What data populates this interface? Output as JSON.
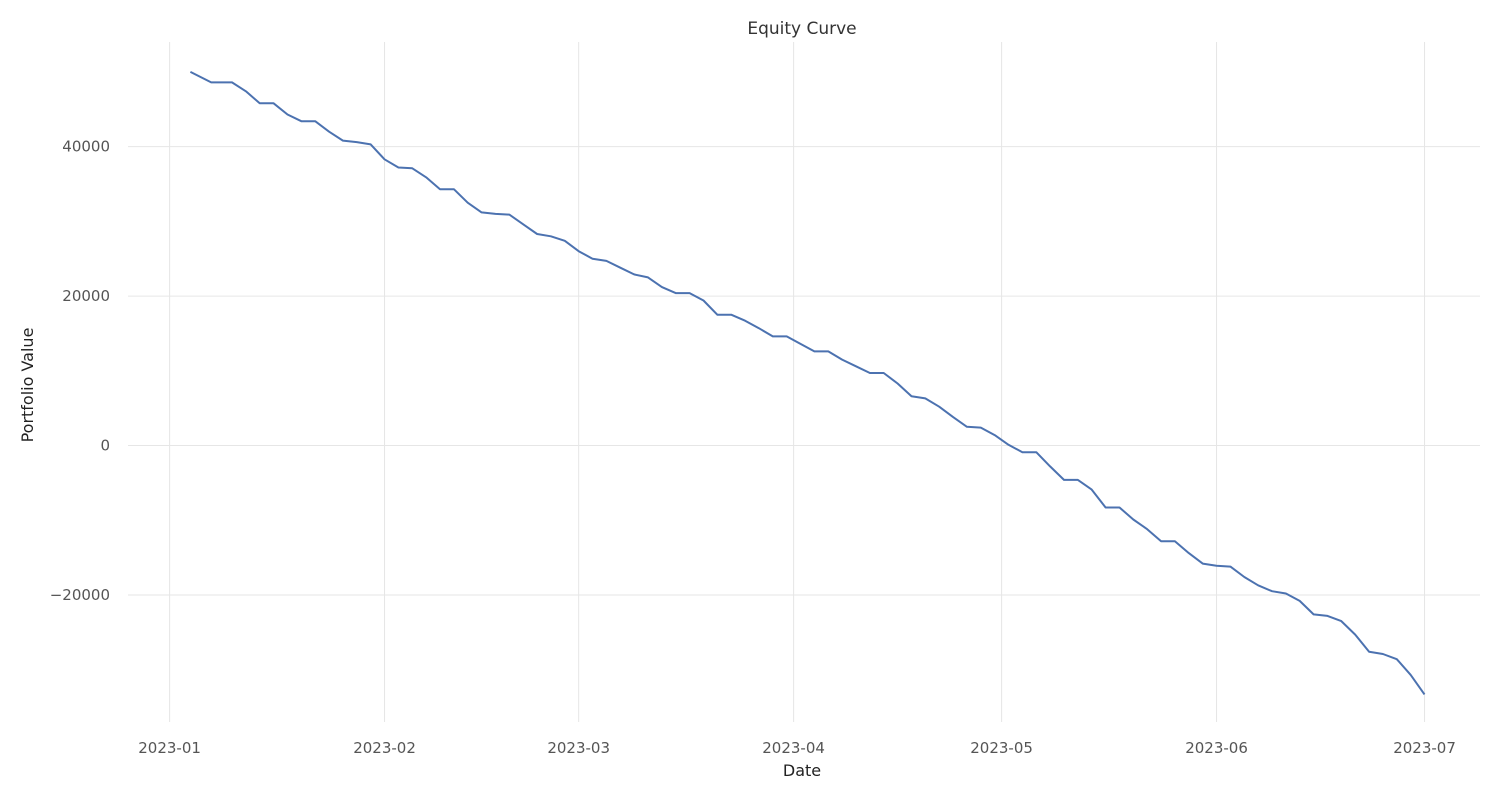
{
  "chart_data": {
    "type": "line",
    "title": "Equity Curve",
    "xlabel": "Date",
    "ylabel": "Portfolio Value",
    "xlim": [
      "2022-12-26",
      "2023-07-09"
    ],
    "ylim": [
      -37000,
      54000
    ],
    "x_ticks": [
      "2023-01",
      "2023-02",
      "2023-03",
      "2023-04",
      "2023-05",
      "2023-06",
      "2023-07"
    ],
    "y_ticks": [
      -20000,
      0,
      20000,
      40000
    ],
    "y_tick_labels": [
      "−20000",
      "0",
      "20000",
      "40000"
    ],
    "grid": true,
    "series": [
      {
        "color": "#4c72b0",
        "x": [
          "2023-01-04",
          "2023-01-07",
          "2023-01-10",
          "2023-01-12",
          "2023-01-14",
          "2023-01-16",
          "2023-01-18",
          "2023-01-20",
          "2023-01-22",
          "2023-01-24",
          "2023-01-26",
          "2023-01-28",
          "2023-01-30",
          "2023-02-01",
          "2023-02-03",
          "2023-02-05",
          "2023-02-07",
          "2023-02-09",
          "2023-02-11",
          "2023-02-13",
          "2023-02-15",
          "2023-02-17",
          "2023-02-19",
          "2023-02-21",
          "2023-02-23",
          "2023-02-25",
          "2023-02-27",
          "2023-03-01",
          "2023-03-03",
          "2023-03-05",
          "2023-03-07",
          "2023-03-09",
          "2023-03-11",
          "2023-03-13",
          "2023-03-15",
          "2023-03-17",
          "2023-03-19",
          "2023-03-21",
          "2023-03-23",
          "2023-03-25",
          "2023-03-27",
          "2023-03-29",
          "2023-03-31",
          "2023-04-02",
          "2023-04-04",
          "2023-04-06",
          "2023-04-08",
          "2023-04-10",
          "2023-04-12",
          "2023-04-14",
          "2023-04-16",
          "2023-04-18",
          "2023-04-20",
          "2023-04-22",
          "2023-04-24",
          "2023-04-26",
          "2023-04-28",
          "2023-04-30",
          "2023-05-02",
          "2023-05-04",
          "2023-05-06",
          "2023-05-08",
          "2023-05-10",
          "2023-05-12",
          "2023-05-14",
          "2023-05-16",
          "2023-05-18",
          "2023-05-20",
          "2023-05-22",
          "2023-05-24",
          "2023-05-26",
          "2023-05-28",
          "2023-05-30",
          "2023-06-01",
          "2023-06-03",
          "2023-06-05",
          "2023-06-07",
          "2023-06-09",
          "2023-06-11",
          "2023-06-13",
          "2023-06-15",
          "2023-06-17",
          "2023-06-19",
          "2023-06-21",
          "2023-06-23",
          "2023-06-25",
          "2023-06-27",
          "2023-06-29",
          "2023-07-01"
        ],
        "y": [
          50000,
          48600,
          48600,
          47400,
          45800,
          45800,
          44300,
          43400,
          43400,
          42000,
          40800,
          40600,
          40300,
          38300,
          37200,
          37100,
          35900,
          34300,
          34300,
          32500,
          31200,
          31000,
          30900,
          29600,
          28300,
          28000,
          27400,
          26000,
          25000,
          24700,
          23800,
          22900,
          22500,
          21200,
          20400,
          20400,
          19400,
          17500,
          17500,
          16700,
          15700,
          14600,
          14600,
          13600,
          12600,
          12600,
          11500,
          10600,
          9700,
          9700,
          8300,
          6600,
          6300,
          5200,
          3800,
          2500,
          2400,
          1400,
          100,
          -900,
          -900,
          -2800,
          -4600,
          -4600,
          -5900,
          -8300,
          -8300,
          -9900,
          -11200,
          -12800,
          -12800,
          -14400,
          -15800,
          -16100,
          -16200,
          -17600,
          -18700,
          -19500,
          -19800,
          -20800,
          -22600,
          -22800,
          -23500,
          -25300,
          -27600,
          -27900,
          -28600,
          -30700,
          -33300
        ]
      }
    ]
  }
}
